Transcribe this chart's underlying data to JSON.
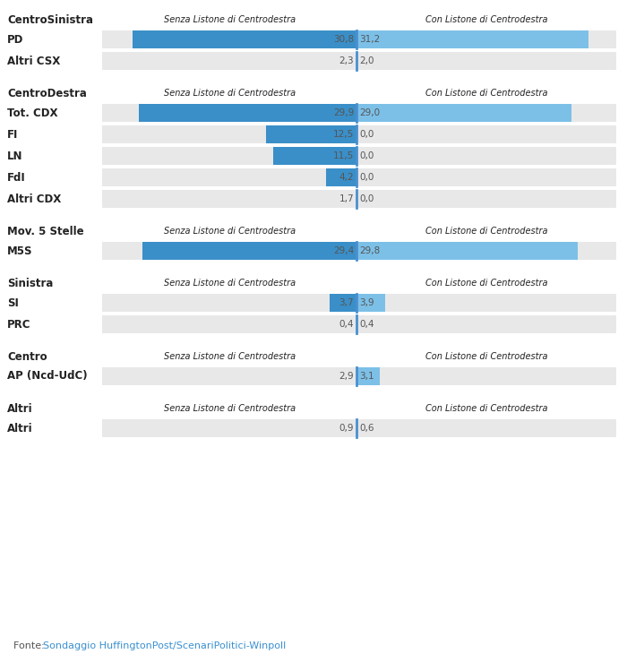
{
  "bg_color": "#ffffff",
  "bar_bg_color": "#e8e8e8",
  "col1_color": "#3a8fc8",
  "col2_color": "#7cc0e8",
  "divider_color": "#4a90d0",
  "text_color": "#555555",
  "label_color": "#222222",
  "header_color": "#222222",
  "source_label_color": "#555555",
  "source_link_color": "#3a90d0",
  "header_label1": "Senza Listone di Centrodestra",
  "header_label2": "Con Listone di Centrodestra",
  "source_label": "Fonte: ",
  "source_link": "Sondaggio HuffingtonPost/ScenariPolitici-Winpoll",
  "max_val": 35,
  "sections": [
    {
      "group_label": "CentroSinistra",
      "rows": [
        {
          "label": "PD",
          "v1": 30.8,
          "v2": 31.2,
          "b1": true,
          "b2": true
        },
        {
          "label": "Altri CSX",
          "v1": 2.3,
          "v2": 2.0,
          "b1": false,
          "b2": false
        }
      ]
    },
    {
      "group_label": "CentroDestra",
      "rows": [
        {
          "label": "Tot. CDX",
          "v1": 29.9,
          "v2": 29.0,
          "b1": true,
          "b2": true
        },
        {
          "label": "FI",
          "v1": 12.5,
          "v2": 0.0,
          "b1": true,
          "b2": false
        },
        {
          "label": "LN",
          "v1": 11.5,
          "v2": 0.0,
          "b1": true,
          "b2": false
        },
        {
          "label": "FdI",
          "v1": 4.2,
          "v2": 0.0,
          "b1": true,
          "b2": false
        },
        {
          "label": "Altri CDX",
          "v1": 1.7,
          "v2": 0.0,
          "b1": false,
          "b2": false
        }
      ]
    },
    {
      "group_label": "Mov. 5 Stelle",
      "rows": [
        {
          "label": "M5S",
          "v1": 29.4,
          "v2": 29.8,
          "b1": true,
          "b2": true
        }
      ]
    },
    {
      "group_label": "Sinistra",
      "rows": [
        {
          "label": "SI",
          "v1": 3.7,
          "v2": 3.9,
          "b1": true,
          "b2": true
        },
        {
          "label": "PRC",
          "v1": 0.4,
          "v2": 0.4,
          "b1": false,
          "b2": false
        }
      ]
    },
    {
      "group_label": "Centro",
      "rows": [
        {
          "label": "AP (Ncd-UdC)",
          "v1": 2.9,
          "v2": 3.1,
          "b1": false,
          "b2": true
        }
      ]
    },
    {
      "group_label": "Altri",
      "rows": [
        {
          "label": "Altri",
          "v1": 0.9,
          "v2": 0.6,
          "b1": false,
          "b2": false
        }
      ]
    }
  ]
}
